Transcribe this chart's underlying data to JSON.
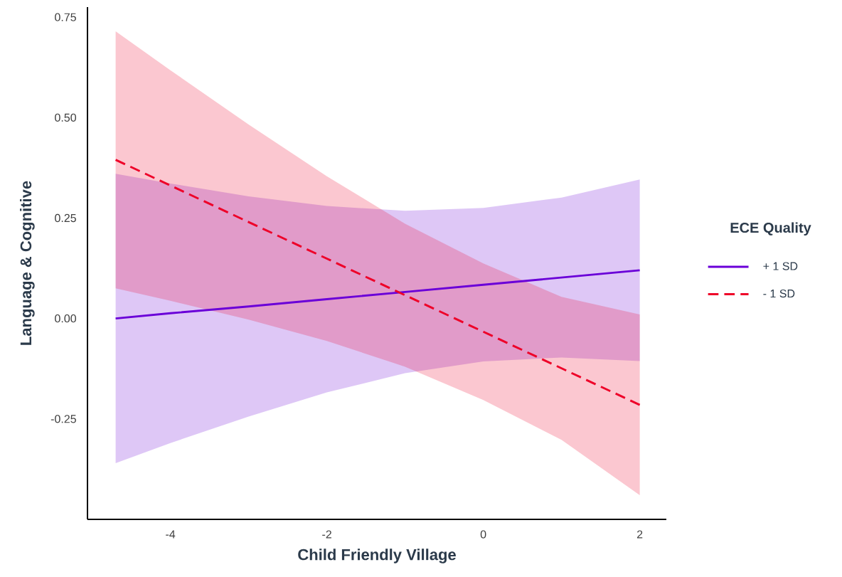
{
  "chart_data": {
    "type": "line",
    "xlabel": "Child Friendly Village",
    "ylabel": "Language & Cognitive",
    "legend_title": "ECE Quality",
    "x": [
      -4.7,
      -4,
      -3,
      -2,
      -1,
      0,
      1,
      2
    ],
    "series": [
      {
        "name": "+ 1 SD",
        "color": "#6a00d8",
        "line_style": "solid",
        "values": [
          0,
          0.013,
          0.03,
          0.048,
          0.066,
          0.084,
          0.102,
          0.12
        ],
        "lower": [
          -0.36,
          -0.31,
          -0.244,
          -0.184,
          -0.136,
          -0.107,
          -0.097,
          -0.106
        ],
        "upper": [
          0.36,
          0.336,
          0.304,
          0.28,
          0.268,
          0.275,
          0.301,
          0.346
        ]
      },
      {
        "name": "- 1 SD",
        "color": "#ee0028",
        "line_style": "dashed",
        "values": [
          0.395,
          0.331,
          0.24,
          0.149,
          0.058,
          -0.033,
          -0.124,
          -0.215
        ],
        "lower": [
          0.075,
          0.044,
          -0.003,
          -0.056,
          -0.12,
          -0.203,
          -0.302,
          -0.44
        ],
        "upper": [
          0.715,
          0.618,
          0.483,
          0.354,
          0.236,
          0.137,
          0.054,
          0.01
        ]
      }
    ],
    "xlim": [
      -5.06,
      2.34
    ],
    "ylim": [
      -0.5,
      0.775
    ],
    "xticks": [
      -4,
      -2,
      0,
      2
    ],
    "yticks": [
      {
        "value": -0.25,
        "label": "-0.25"
      },
      {
        "value": 0,
        "label": "0.00"
      },
      {
        "value": 0.25,
        "label": "0.25"
      },
      {
        "value": 0.5,
        "label": "0.50"
      },
      {
        "value": 0.75,
        "label": "0.75"
      }
    ],
    "legend": "right"
  }
}
